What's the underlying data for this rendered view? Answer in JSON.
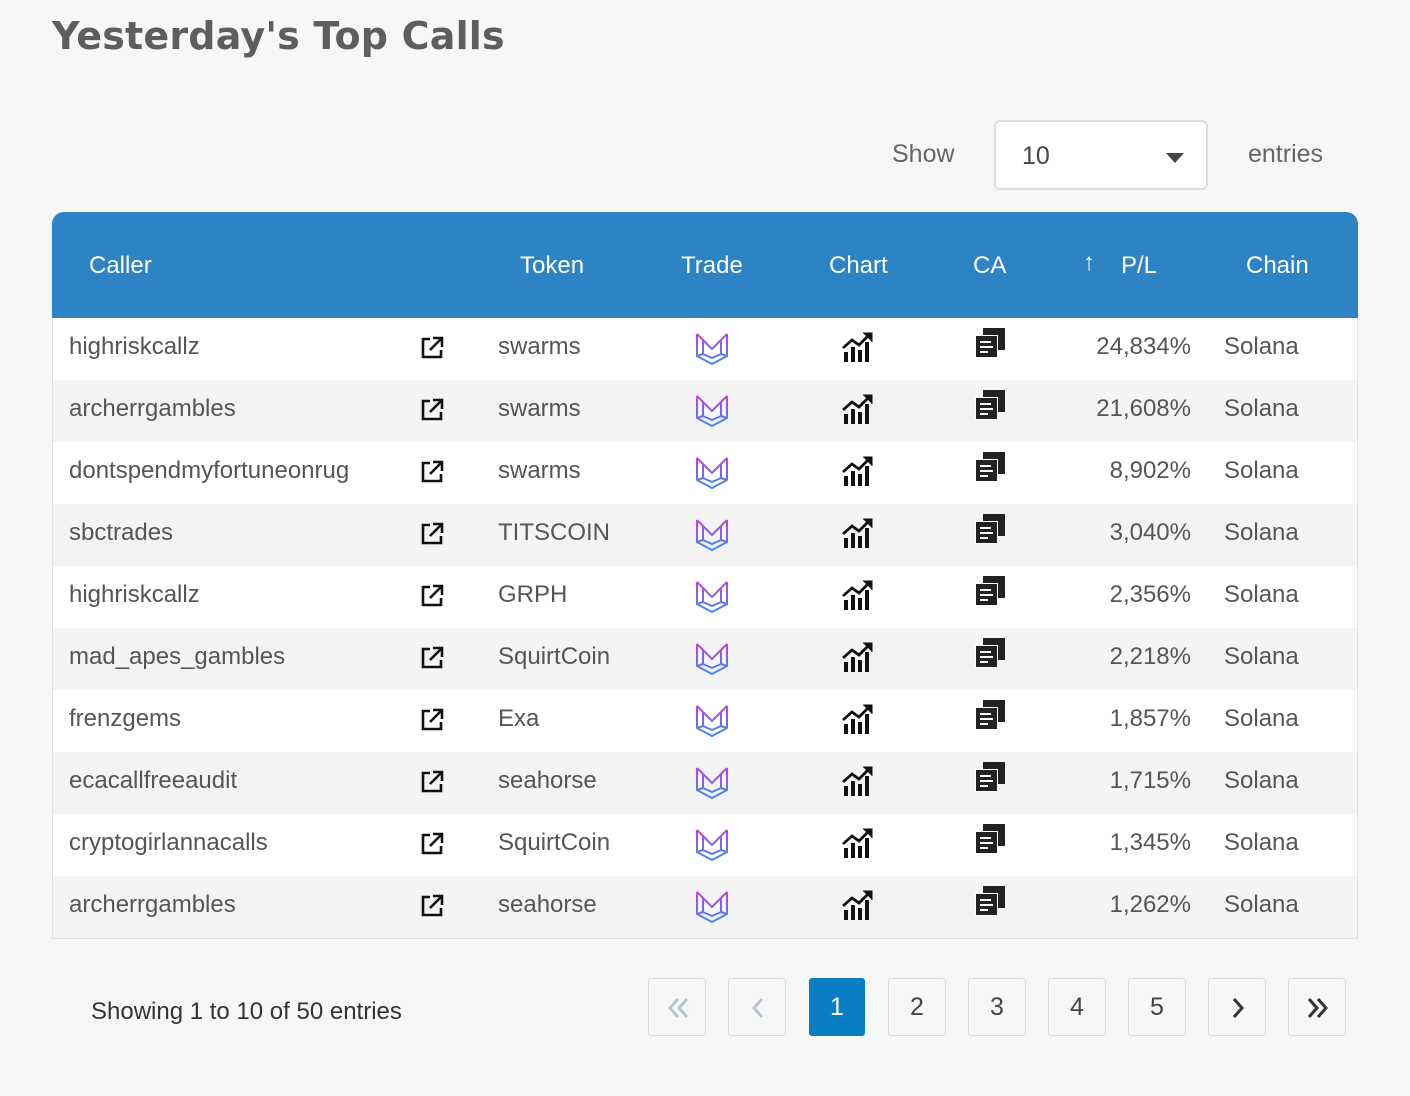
{
  "page": {
    "title": "Yesterday's Top Calls"
  },
  "length_control": {
    "show_label": "Show",
    "selected": "10",
    "entries_label": "entries"
  },
  "columns": {
    "caller": "Caller",
    "token": "Token",
    "trade": "Trade",
    "chart": "Chart",
    "ca": "CA",
    "pl": "P/L",
    "chain": "Chain"
  },
  "rows": [
    {
      "caller": "highriskcallz",
      "token": "swarms",
      "pl": "24,834%",
      "chain": "Solana"
    },
    {
      "caller": "archerrgambles",
      "token": "swarms",
      "pl": "21,608%",
      "chain": "Solana"
    },
    {
      "caller": "dontspendmyfortuneonrug",
      "token": "swarms",
      "pl": "8,902%",
      "chain": "Solana"
    },
    {
      "caller": "sbctrades",
      "token": "TITSCOIN",
      "pl": "3,040%",
      "chain": "Solana"
    },
    {
      "caller": "highriskcallz",
      "token": "GRPH",
      "pl": "2,356%",
      "chain": "Solana"
    },
    {
      "caller": "mad_apes_gambles",
      "token": "SquirtCoin",
      "pl": "2,218%",
      "chain": "Solana"
    },
    {
      "caller": "frenzgems",
      "token": "Exa",
      "pl": "1,857%",
      "chain": "Solana"
    },
    {
      "caller": "ecacallfreeaudit",
      "token": "seahorse",
      "pl": "1,715%",
      "chain": "Solana"
    },
    {
      "caller": "cryptogirlannacalls",
      "token": "SquirtCoin",
      "pl": "1,345%",
      "chain": "Solana"
    },
    {
      "caller": "archerrgambles",
      "token": "seahorse",
      "pl": "1,262%",
      "chain": "Solana"
    }
  ],
  "footer": {
    "info": "Showing 1 to 10 of 50 entries"
  },
  "pagination": {
    "pages": [
      "1",
      "2",
      "3",
      "4",
      "5"
    ],
    "current": "1"
  },
  "colors": {
    "header": "#2e83c4",
    "active_page": "#0a7ec5",
    "trade_icon_start": "#c040e0",
    "trade_icon_end": "#3a8ff0"
  }
}
